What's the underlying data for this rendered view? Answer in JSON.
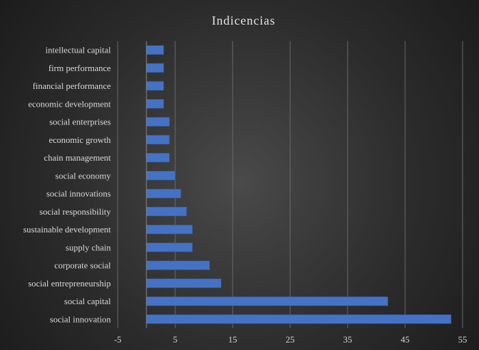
{
  "chart_data": {
    "type": "bar",
    "orientation": "horizontal",
    "title": "Indicencias",
    "xlabel": "",
    "ylabel": "",
    "xlim": [
      -5,
      55
    ],
    "xticks": [
      -5,
      5,
      15,
      25,
      35,
      45,
      55
    ],
    "grid": true,
    "legend": "none",
    "bar_color": "#4472c4",
    "categories": [
      "intellectual capital",
      "firm performance",
      "financial performance",
      "economic development",
      "social enterprises",
      "economic growth",
      "chain management",
      "social economy",
      "social innovations",
      "social responsibility",
      "sustainable development",
      "supply chain",
      "corporate social",
      "social entrepreneurship",
      "social capital",
      "social innovation"
    ],
    "values": [
      3,
      3,
      3,
      3,
      4,
      4,
      4,
      5,
      6,
      7,
      8,
      8,
      11,
      13,
      42,
      53
    ]
  }
}
